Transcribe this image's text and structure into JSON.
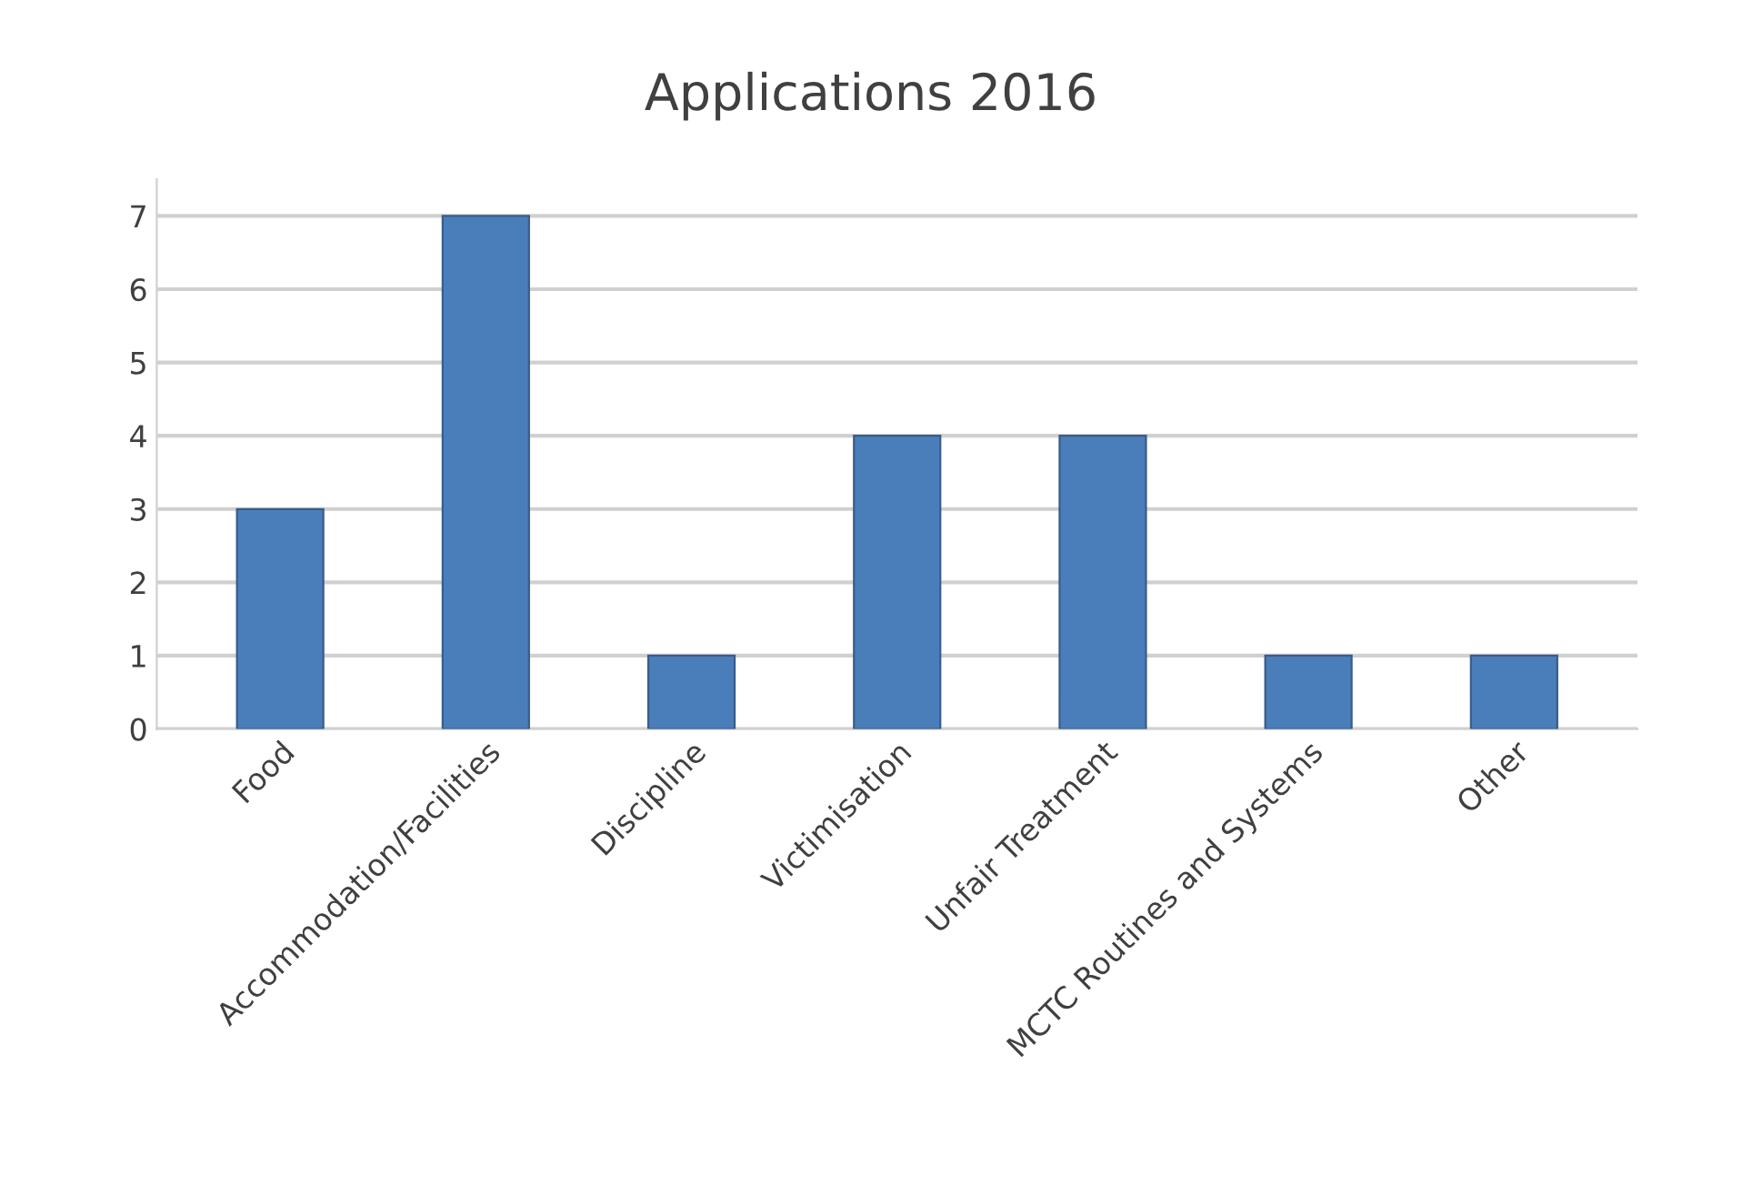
{
  "chart_data": {
    "type": "bar",
    "title": "Applications 2016",
    "categories": [
      "Food",
      "Accommodation/Facilities",
      "Discipline",
      "Victimisation",
      "Unfair Treatment",
      "MCTC Routines and Systems",
      "Other"
    ],
    "values": [
      3,
      7,
      1,
      4,
      4,
      1,
      1
    ],
    "color": "#4a7ebb",
    "ylim": [
      0,
      7.5
    ],
    "yticks": [
      0,
      1,
      2,
      3,
      4,
      5,
      6,
      7
    ],
    "grid": "y",
    "legend": false
  }
}
